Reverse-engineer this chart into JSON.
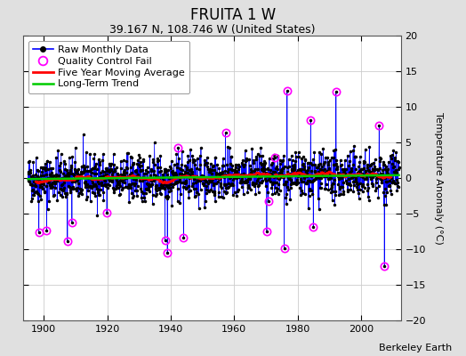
{
  "title": "FRUITA 1 W",
  "subtitle": "39.167 N, 108.746 W (United States)",
  "ylabel": "Temperature Anomaly (°C)",
  "watermark": "Berkeley Earth",
  "year_start": 1895,
  "year_end": 2011,
  "ylim": [
    -20,
    20
  ],
  "yticks": [
    -20,
    -15,
    -10,
    -5,
    0,
    5,
    10,
    15,
    20
  ],
  "xticks": [
    1900,
    1920,
    1940,
    1960,
    1980,
    2000
  ],
  "bg_color": "#e0e0e0",
  "plot_bg_color": "#ffffff",
  "grid_color": "#cccccc",
  "raw_line_color": "#0000ff",
  "raw_dot_color": "#000000",
  "qc_fail_color": "#ff00ff",
  "moving_avg_color": "#ff0000",
  "trend_color": "#00cc00",
  "title_fontsize": 12,
  "subtitle_fontsize": 9,
  "legend_fontsize": 8,
  "axis_fontsize": 8,
  "ylabel_fontsize": 8,
  "seed": 42,
  "n_months_noise_std": 1.6,
  "n_qc_fails": 20,
  "qc_anomaly_range": [
    6,
    11
  ]
}
